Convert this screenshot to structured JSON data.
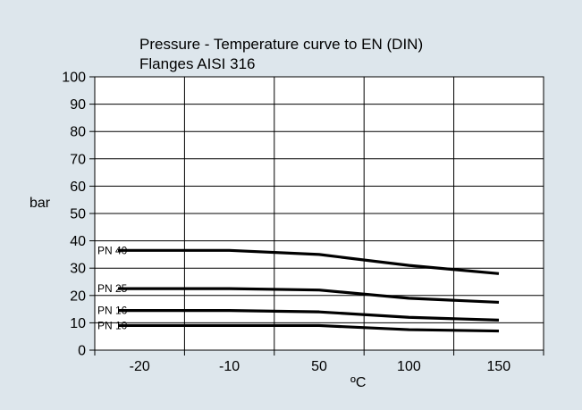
{
  "chart_data": {
    "type": "line",
    "title": "Pressure - Temperature curve to EN (DIN)",
    "subtitle": "Flanges AISI 316",
    "xlabel": "ºC",
    "ylabel": "bar",
    "categories": [
      "-20",
      "-10",
      "50",
      "100",
      "150"
    ],
    "ylim": [
      0,
      100
    ],
    "yticks": [
      0,
      10,
      20,
      30,
      40,
      50,
      60,
      70,
      80,
      90,
      100
    ],
    "grid": true,
    "legend": "inline-left",
    "series": [
      {
        "name": "PN 40",
        "values": [
          36.5,
          36.5,
          35,
          31,
          28
        ]
      },
      {
        "name": "PN 25",
        "values": [
          22.5,
          22.5,
          22,
          19,
          17.5
        ]
      },
      {
        "name": "PN 16",
        "values": [
          14.5,
          14.5,
          14,
          12,
          11
        ]
      },
      {
        "name": "PN 10",
        "values": [
          9,
          9,
          9,
          7.5,
          7
        ]
      }
    ]
  },
  "colors": {
    "background": "#dde6ec",
    "plot": "#ffffff",
    "line": "#000000"
  }
}
